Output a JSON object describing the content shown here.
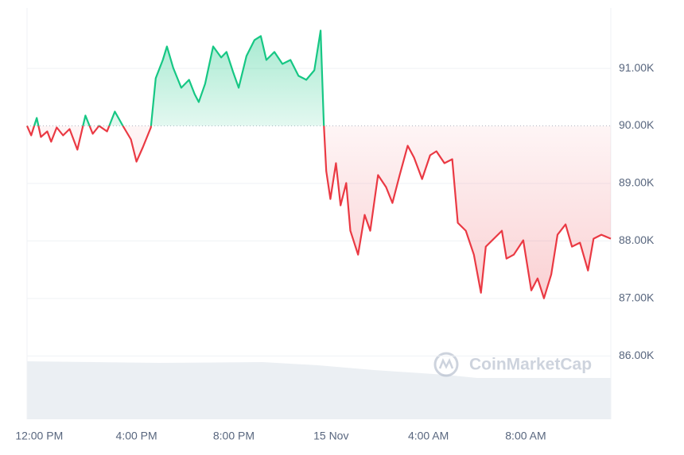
{
  "chart_data": {
    "type": "line",
    "watermark": "CoinMarketCap",
    "baseline": 90000,
    "up_color": "#16c784",
    "down_color": "#ea3943",
    "grid": true,
    "xlim": [
      -0.5,
      23.5
    ],
    "xticks": [
      {
        "value": 0,
        "label": "12:00 PM"
      },
      {
        "value": 4,
        "label": "4:00 PM"
      },
      {
        "value": 8,
        "label": "8:00 PM"
      },
      {
        "value": 12,
        "label": "15 Nov"
      },
      {
        "value": 16,
        "label": "4:00 AM"
      },
      {
        "value": 20,
        "label": "8:00 AM"
      }
    ],
    "ylim": [
      84900,
      92050
    ],
    "yticks": [
      {
        "value": 86000,
        "label": "86.00K"
      },
      {
        "value": 87000,
        "label": "87.00K"
      },
      {
        "value": 88000,
        "label": "88.00K"
      },
      {
        "value": 89000,
        "label": "89.00K"
      },
      {
        "value": 90000,
        "label": "90.00K"
      },
      {
        "value": 91000,
        "label": "91.00K"
      }
    ],
    "x": [
      -0.5,
      -0.33,
      -0.1,
      0.07,
      0.33,
      0.49,
      0.72,
      0.98,
      1.25,
      1.57,
      1.9,
      2.2,
      2.46,
      2.79,
      3.11,
      3.44,
      3.77,
      4.0,
      4.26,
      4.59,
      4.79,
      5.08,
      5.25,
      5.51,
      5.84,
      6.16,
      6.39,
      6.56,
      6.82,
      7.15,
      7.48,
      7.7,
      7.97,
      8.2,
      8.52,
      8.85,
      9.11,
      9.34,
      9.67,
      10.0,
      10.33,
      10.66,
      10.98,
      11.31,
      11.57,
      11.7,
      11.8,
      11.97,
      12.2,
      12.39,
      12.62,
      12.79,
      13.11,
      13.38,
      13.61,
      13.93,
      14.26,
      14.52,
      14.82,
      15.15,
      15.41,
      15.74,
      16.07,
      16.33,
      16.66,
      16.98,
      17.21,
      17.54,
      17.87,
      18.16,
      18.36,
      18.69,
      19.02,
      19.21,
      19.51,
      19.9,
      20.23,
      20.49,
      20.75,
      21.05,
      21.31,
      21.64,
      21.9,
      22.23,
      22.56,
      22.79,
      23.11,
      23.5
    ],
    "values": [
      90000,
      89834,
      90138,
      89807,
      89903,
      89724,
      89972,
      89834,
      89945,
      89586,
      90180,
      89862,
      90000,
      89903,
      90249,
      90000,
      89765,
      89378,
      89627,
      89972,
      90829,
      91146,
      91381,
      91008,
      90663,
      90801,
      90552,
      90414,
      90732,
      91381,
      91188,
      91285,
      90939,
      90663,
      91215,
      91492,
      91561,
      91146,
      91285,
      91077,
      91146,
      90870,
      90801,
      90967,
      91657,
      90041,
      89213,
      88729,
      89351,
      88619,
      89006,
      88177,
      87762,
      88453,
      88177,
      89144,
      88936,
      88660,
      89144,
      89655,
      89448,
      89075,
      89489,
      89558,
      89351,
      89420,
      88315,
      88177,
      87762,
      87099,
      87901,
      88039,
      88177,
      87693,
      87762,
      88011,
      87140,
      87348,
      87002,
      87417,
      88108,
      88287,
      87901,
      87970,
      87486,
      88039,
      88108,
      88039
    ]
  }
}
